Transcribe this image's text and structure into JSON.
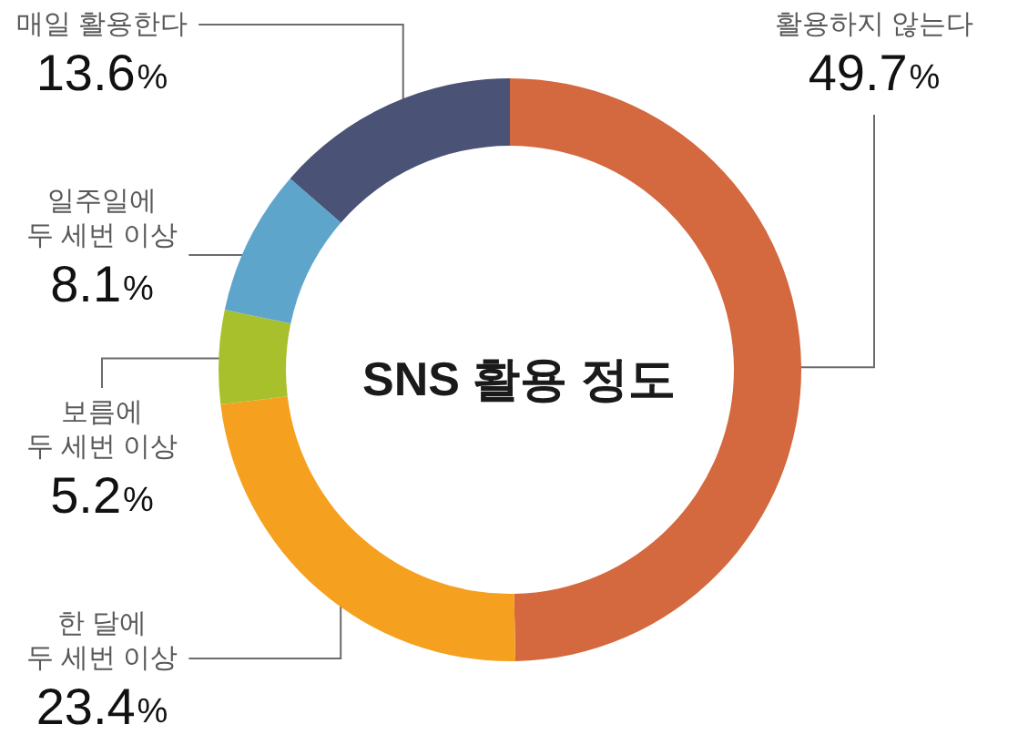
{
  "chart_data": {
    "type": "donut",
    "title": "SNS 활용 정도",
    "categories": [
      "활용하지 않는다",
      "한 달에\n두 세번 이상",
      "보름에\n두 세번 이상",
      "일주일에\n두 세번 이상",
      "매일 활용한다"
    ],
    "values": [
      49.7,
      23.4,
      5.2,
      8.1,
      13.6
    ],
    "colors": [
      "#d4683f",
      "#f5a11f",
      "#a9c02d",
      "#5ea5cc",
      "#4a5275"
    ],
    "value_labels": [
      "49.7%",
      "23.4%",
      "5.2%",
      "8.1%",
      "13.6%"
    ]
  }
}
